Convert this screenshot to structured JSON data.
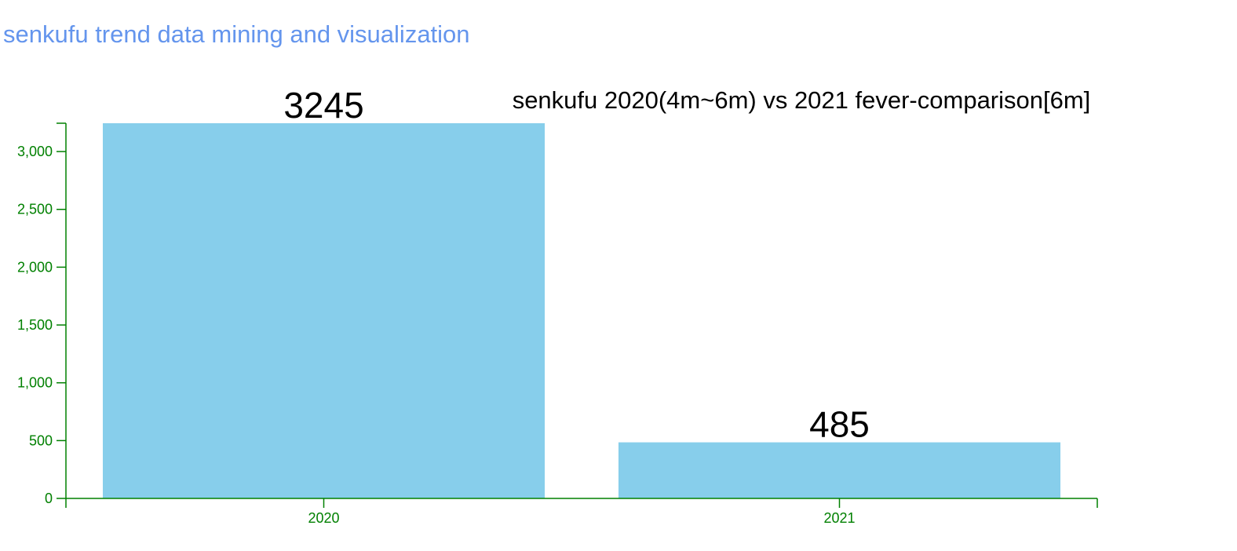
{
  "page": {
    "header": "senkufu trend data mining and visualization"
  },
  "chart_data": {
    "type": "bar",
    "title": "senkufu 2020(4m~6m) vs 2021 fever-comparison[6m]",
    "categories": [
      "2020",
      "2021"
    ],
    "values": [
      3245,
      485
    ],
    "data_labels": [
      "3245",
      "485"
    ],
    "y_ticks": [
      0,
      500,
      1000,
      1500,
      2000,
      2500,
      3000
    ],
    "y_tick_labels": [
      "0",
      "500",
      "1,000",
      "1,500",
      "2,000",
      "2,500",
      "3,000"
    ],
    "ylim": [
      0,
      3245
    ],
    "xlabel": "",
    "ylabel": "",
    "grid": false,
    "colors": {
      "bar": "#87CEEB",
      "axis": "#008000",
      "header": "#6495ED",
      "labels": "#000000"
    }
  }
}
